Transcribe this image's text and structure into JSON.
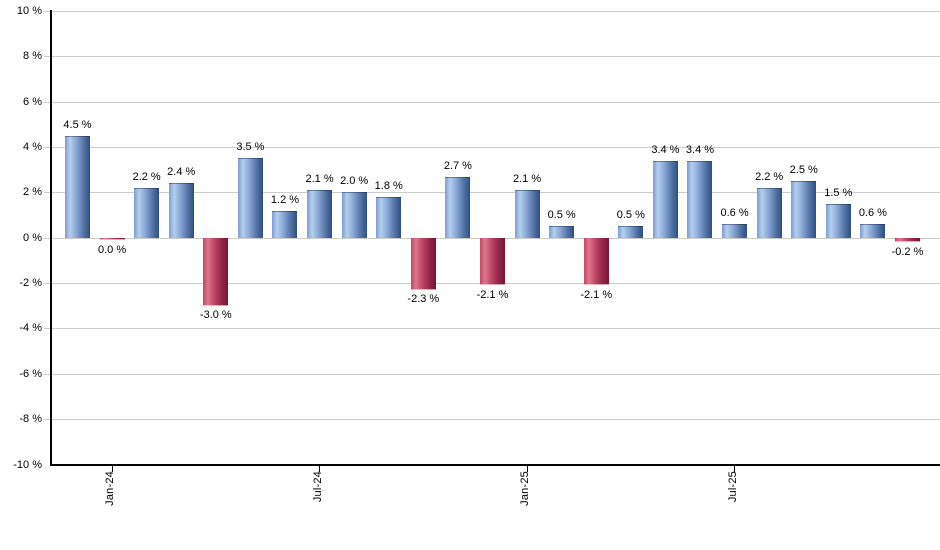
{
  "chart_data": {
    "type": "bar",
    "title": "",
    "xlabel": "",
    "ylabel": "",
    "unit": "%",
    "values": [
      4.5,
      0.0,
      2.2,
      2.4,
      -3.0,
      3.5,
      1.2,
      2.1,
      2.0,
      1.8,
      -2.3,
      2.7,
      -2.1,
      2.1,
      0.5,
      -2.1,
      0.5,
      3.4,
      3.4,
      0.6,
      2.2,
      2.5,
      1.5,
      0.6,
      -0.2
    ],
    "bar_labels": [
      "4.5 %",
      "0.0 %",
      "2.2 %",
      "2.4 %",
      "-3.0 %",
      "3.5 %",
      "1.2 %",
      "2.1 %",
      "2.0 %",
      "1.8 %",
      "-2.3 %",
      "2.7 %",
      "-2.1 %",
      "2.1 %",
      "0.5 %",
      "-2.1 %",
      "0.5 %",
      "3.4 %",
      "3.4 %",
      "0.6 %",
      "2.2 %",
      "2.5 %",
      "1.5 %",
      "0.6 %",
      "-0.2 %"
    ],
    "ylim": [
      -10,
      10
    ],
    "y_step": 2,
    "y_tick_labels": [
      "10 %",
      "8 %",
      "6 %",
      "4 %",
      "2 %",
      "0 %",
      "-2 %",
      "-4 %",
      "-6 %",
      "-8 %",
      "-10 %"
    ],
    "x_ticks": [
      {
        "bar_index": 1,
        "label": "Jan-24"
      },
      {
        "bar_index": 7,
        "label": "Jul-24"
      },
      {
        "bar_index": 13,
        "label": "Jan-25"
      },
      {
        "bar_index": 19,
        "label": "Jul-25"
      }
    ],
    "grid": true,
    "legend": "none",
    "colors": {
      "positive_gradient": [
        "#7e9ccd",
        "#b4cfee",
        "#8aa8d6",
        "#5273a6",
        "#2f4e81"
      ],
      "negative_gradient": [
        "#c04764",
        "#e0768e",
        "#bc4767",
        "#93264a",
        "#7a1432"
      ],
      "gridline": "#cccccc",
      "axis": "#000000",
      "text": "#000000",
      "background": "#ffffff"
    }
  }
}
